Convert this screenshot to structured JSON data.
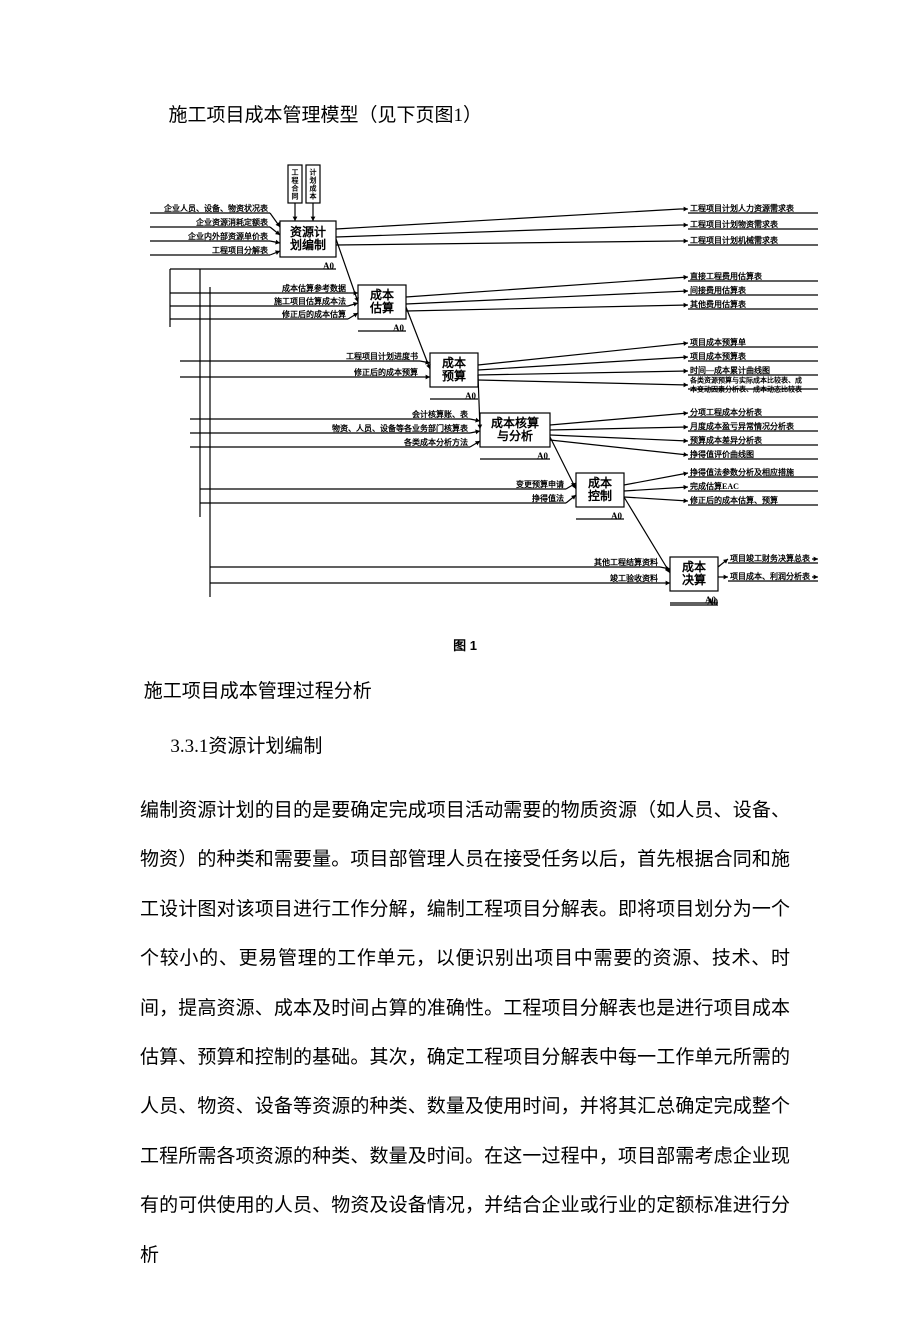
{
  "title": "施工项目成本管理模型（见下页图1）",
  "caption": "图 1",
  "subhead1": "施工项目成本管理过程分析",
  "subhead2": "3.3.1资源计划编制",
  "body": "编制资源计划的目的是要确定完成项目活动需要的物质资源（如人员、设备、物资）的种类和需要量。项目部管理人员在接受任务以后，首先根据合同和施工设计图对该项目进行工作分解，编制工程项目分解表。即将项目划分为一个个较小的、更易管理的工作单元，以便识别出项目中需要的资源、技术、时间，提高资源、成本及时间占算的准确性。工程项目分解表也是进行项目成本估算、预算和控制的基础。其次，确定工程项目分解表中每一工作单元所需的人员、物资、设备等资源的种类、数量及使用时间，并将其汇总确定完成整个工程所需各项资源的种类、数量及时间。在这一过程中，项目部需考虑企业现有的可供使用的人员、物资及设备情况，并结合企业或行业的定额标准进行分析",
  "diagram": {
    "background": "#ffffff",
    "stroke": "#000000",
    "stroke_width": 1.2,
    "font_family": "SimHei",
    "label_fontsize": 9,
    "box_fontsize": 12,
    "small_fontsize": 8,
    "a0": "A0",
    "top_vertical_inputs": [
      "工程合同",
      "计划成本"
    ],
    "left_inputs_group1": [
      "企业人员、设备、物资状况表",
      "企业资源消耗定额表",
      "企业内外部资源单价表",
      "工程项目分解表"
    ],
    "left_inputs_group2": [
      "成本估算参考数据",
      "施工项目估算成本法",
      "修正后的成本估算"
    ],
    "left_inputs_group3": [
      "工程项目计划进度书",
      "修正后的成本预算"
    ],
    "left_inputs_group4": [
      "会计核算账、表",
      "物资、人员、设备等各业务部门核算表",
      "各类成本分析方法"
    ],
    "left_inputs_group5": [
      "变更预算申请",
      "挣得值法"
    ],
    "left_inputs_group6": [
      "其他工程结算资料",
      "竣工验收资料"
    ],
    "process_boxes": [
      {
        "id": "p1",
        "label": "资源计\n划编制"
      },
      {
        "id": "p2",
        "label": "成本\n估算"
      },
      {
        "id": "p3",
        "label": "成本\n预算"
      },
      {
        "id": "p4",
        "label": "成本核算\n与分析"
      },
      {
        "id": "p5",
        "label": "成本\n控制"
      },
      {
        "id": "p6",
        "label": "成本\n决算"
      }
    ],
    "right_outputs_group1": [
      "工程项目计划人力资源需求表",
      "工程项目计划物资需求表",
      "工程项目计划机械需求表"
    ],
    "right_outputs_group2": [
      "直接工程费用估算表",
      "间接费用估算表",
      "其他费用估算表"
    ],
    "right_outputs_group3": [
      "项目成本预算单",
      "项目成本预算表",
      "时间—成本累计曲线图",
      "各类资源预算与实际成本比较表、成本变动因素分析表、成本动态比较表"
    ],
    "right_outputs_group4": [
      "分项工程成本分析表",
      "月度成本盈亏异常情况分析表",
      "预算成本差异分析表",
      "挣得值评价曲线图"
    ],
    "right_outputs_group5": [
      "挣得值法参数分析及相应措施",
      "完成估算EAC",
      "修正后的成本估算、预算"
    ],
    "right_outputs_group6": [
      "项目竣工财务决算总表",
      "项目成本、利润分析表"
    ]
  }
}
